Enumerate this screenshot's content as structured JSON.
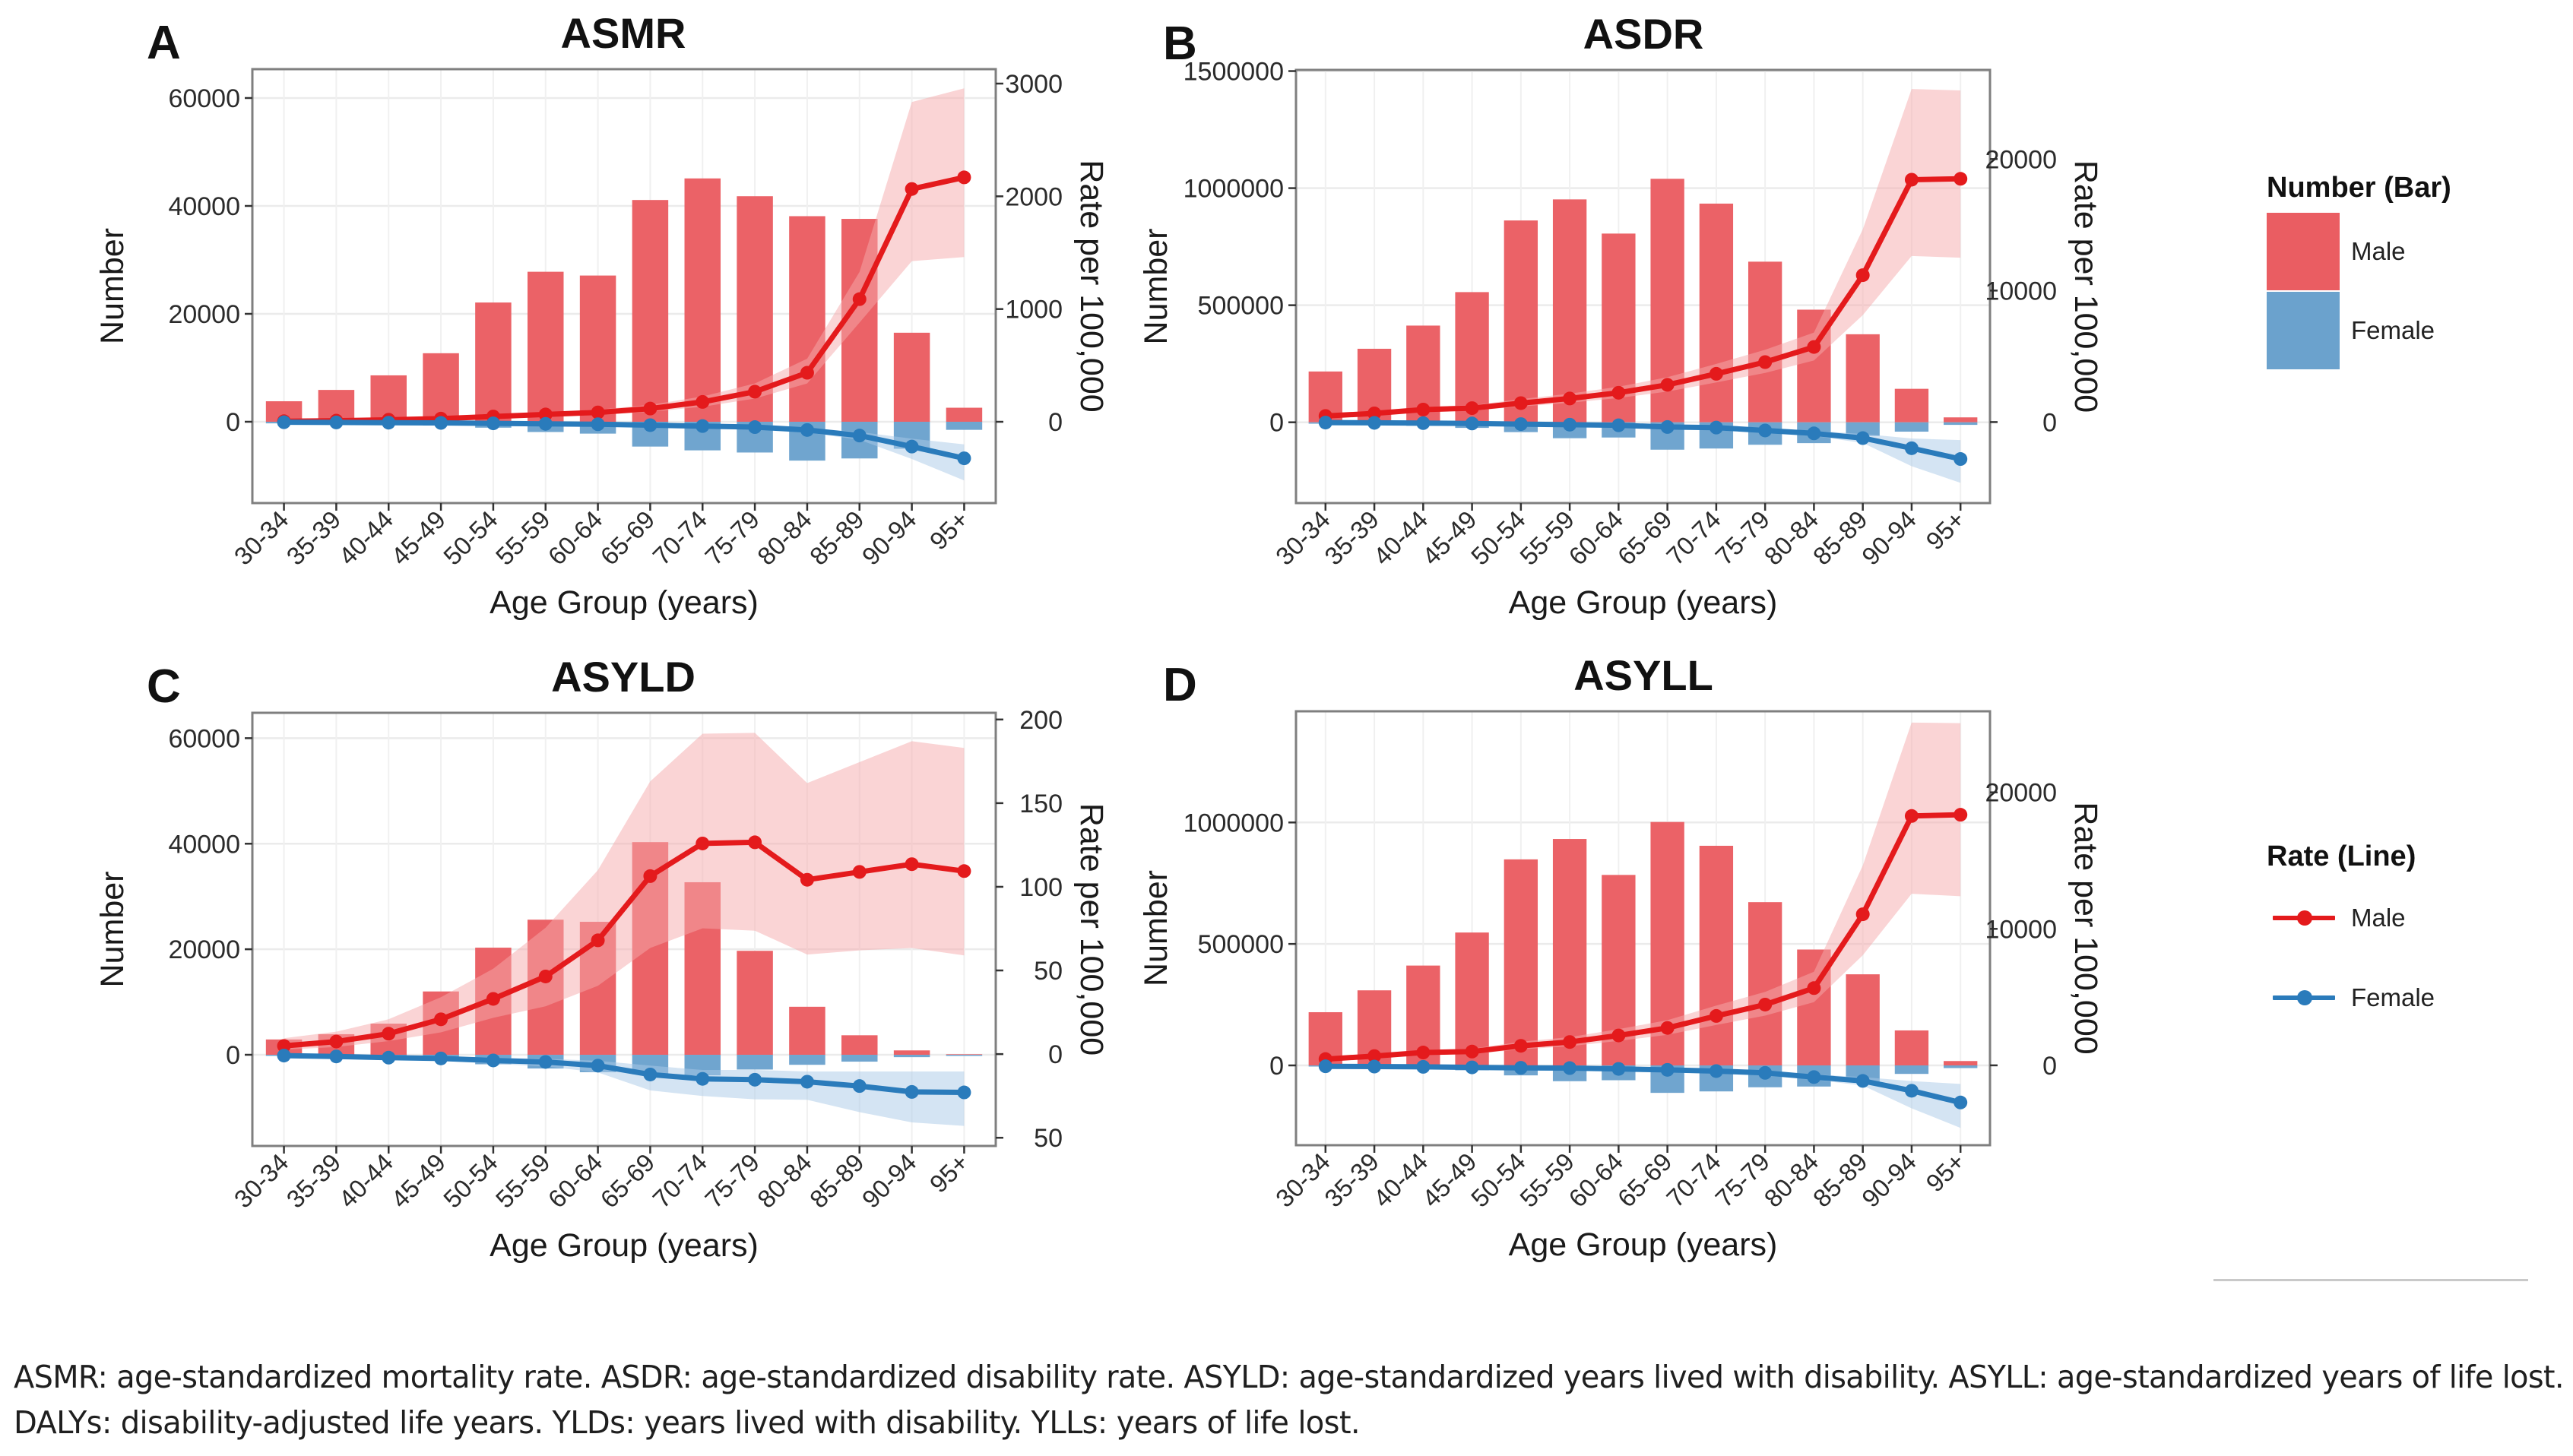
{
  "legend": {
    "bar_title": "Number (Bar)",
    "line_title": "Rate (Line)",
    "male_label": "Male",
    "female_label": "Female"
  },
  "colors": {
    "male_bar": "#EA5D62",
    "female_bar": "#6BA2CD",
    "male_line": "#E41A1C",
    "female_line": "#2A7BBB",
    "male_band": "#F5A9AC",
    "female_band": "#A9C9E8",
    "grid": "#EBEBEB",
    "frame": "#7F7F7F"
  },
  "caption": {
    "line1": "ASMR: age-standardized mortality rate. ASDR: age-standardized disability rate. ASYLD: age-standardized years lived with disability. ASYLL: age-standardized years of life lost.",
    "line2": "DALYs: disability-adjusted life years. YLDs: years lived with disability. YLLs: years of life lost."
  },
  "chart_data": [
    {
      "panel": "A",
      "title": "ASMR",
      "type": "bar+line",
      "xlabel": "Age Group (years)",
      "ylabel": "Number",
      "y2label": "Rate per 100,000",
      "categories": [
        "30-34",
        "35-39",
        "40-44",
        "45-49",
        "50-54",
        "55-59",
        "60-64",
        "65-69",
        "70-74",
        "75-79",
        "80-84",
        "85-89",
        "90-94",
        "95+"
      ],
      "ylim": [
        -15070,
        65350
      ],
      "yticks": [
        0,
        20000,
        40000,
        60000
      ],
      "y2lim": [
        -721,
        3128
      ],
      "y2ticks": [
        0,
        1000,
        2000,
        3000
      ],
      "grid": true,
      "bars": {
        "male": [
          3800,
          5900,
          8600,
          12700,
          22100,
          27800,
          27100,
          41100,
          45100,
          41800,
          38100,
          37600,
          16500,
          2600
        ],
        "female": [
          -300,
          -400,
          -500,
          -700,
          -1100,
          -1900,
          -2200,
          -4600,
          -5300,
          -5700,
          -7200,
          -6800,
          -5000,
          -1500
        ]
      },
      "lines": {
        "male": [
          5,
          10,
          18,
          28,
          47,
          65,
          83,
          117,
          176,
          267,
          435,
          1088,
          2065,
          2168
        ],
        "male_lower": [
          3,
          7,
          13,
          20,
          34,
          48,
          61,
          88,
          134,
          206,
          340,
          880,
          1425,
          1461
        ],
        "male_upper": [
          8,
          14,
          24,
          37,
          60,
          84,
          108,
          150,
          225,
          340,
          560,
          1330,
          2837,
          2958
        ],
        "female": [
          -4,
          -6,
          -8,
          -10,
          -14,
          -18,
          -22,
          -30,
          -38,
          -47,
          -73,
          -122,
          -220,
          -324
        ],
        "female_lower": [
          -6,
          -8,
          -11,
          -14,
          -19,
          -24,
          -29,
          -40,
          -50,
          -62,
          -95,
          -160,
          -330,
          -520
        ],
        "female_upper": [
          -2,
          -4,
          -5,
          -7,
          -10,
          -13,
          -16,
          -22,
          -28,
          -35,
          -55,
          -90,
          -150,
          -200
        ]
      }
    },
    {
      "panel": "B",
      "title": "ASDR",
      "type": "bar+line",
      "xlabel": "Age Group (years)",
      "ylabel": "Number",
      "y2label": "Rate per 100,000",
      "categories": [
        "30-34",
        "35-39",
        "40-44",
        "45-49",
        "50-54",
        "55-59",
        "60-64",
        "65-69",
        "70-74",
        "75-79",
        "80-84",
        "85-89",
        "90-94",
        "95+"
      ],
      "ylim": [
        -345000,
        1505000
      ],
      "yticks": [
        0,
        500000,
        1000000,
        1500000
      ],
      "y2lim": [
        -6160,
        26780
      ],
      "y2ticks": [
        0,
        10000,
        20000
      ],
      "grid": true,
      "bars": {
        "male": [
          217000,
          314000,
          413000,
          556000,
          862000,
          952000,
          806000,
          1040000,
          934000,
          686000,
          481000,
          376000,
          143000,
          21000
        ],
        "female": [
          -6000,
          -9000,
          -15000,
          -24000,
          -42000,
          -68000,
          -65000,
          -117000,
          -112000,
          -96000,
          -89000,
          -58000,
          -40000,
          -11000
        ]
      },
      "lines": {
        "male": [
          465,
          660,
          950,
          1060,
          1440,
          1790,
          2230,
          2830,
          3670,
          4560,
          5710,
          11170,
          18430,
          18500
        ],
        "male_lower": [
          380,
          540,
          780,
          870,
          1180,
          1470,
          1830,
          2320,
          3010,
          3740,
          4680,
          8140,
          12630,
          12500
        ],
        "male_upper": [
          560,
          800,
          1150,
          1280,
          1740,
          2160,
          2690,
          3410,
          4420,
          5500,
          6810,
          14670,
          25330,
          25220
        ],
        "female": [
          -40,
          -60,
          -80,
          -110,
          -155,
          -200,
          -245,
          -375,
          -420,
          -640,
          -860,
          -1220,
          -1990,
          -2810
        ],
        "female_lower": [
          -50,
          -75,
          -100,
          -135,
          -190,
          -245,
          -300,
          -460,
          -520,
          -790,
          -1060,
          -1590,
          -3360,
          -4620
        ],
        "female_upper": [
          -30,
          -45,
          -60,
          -85,
          -120,
          -155,
          -190,
          -290,
          -325,
          -495,
          -665,
          -900,
          -1250,
          -1370
        ]
      }
    },
    {
      "panel": "C",
      "title": "ASYLD",
      "type": "bar+line",
      "xlabel": "Age Group (years)",
      "ylabel": "Number",
      "y2label": "Rate per 100,000",
      "categories": [
        "30-34",
        "35-39",
        "40-44",
        "45-49",
        "50-54",
        "55-59",
        "60-64",
        "65-69",
        "70-74",
        "75-79",
        "80-84",
        "85-89",
        "90-94",
        "95+"
      ],
      "ylim": [
        -17280,
        64810
      ],
      "yticks": [
        0,
        20000,
        40000,
        60000
      ],
      "y2lim": [
        -54.9,
        204
      ],
      "y2ticks": [
        -50,
        0,
        50,
        100,
        150,
        200
      ],
      "grid": true,
      "bars": {
        "male": [
          2900,
          3900,
          5900,
          12000,
          20300,
          25600,
          25200,
          40300,
          32700,
          19700,
          9100,
          3700,
          830,
          100
        ],
        "female": [
          -100,
          -150,
          -200,
          -550,
          -1800,
          -2600,
          -3300,
          -3700,
          -3900,
          -2800,
          -1900,
          -1300,
          -450,
          -100
        ]
      },
      "lines": {
        "male": [
          4.9,
          7.5,
          12.2,
          20.8,
          33.0,
          46.4,
          68.0,
          106.4,
          125.9,
          126.6,
          104.2,
          108.9,
          113.5,
          109.4
        ],
        "male_lower": [
          2.6,
          4.3,
          7.8,
          13.0,
          21.7,
          28.6,
          40.8,
          63.4,
          75.2,
          73.8,
          59.5,
          62.0,
          63.4,
          59.0
        ],
        "male_upper": [
          9.5,
          13.4,
          20.8,
          34.0,
          51.0,
          75.5,
          110.0,
          163.0,
          191.5,
          192.0,
          162.0,
          174.5,
          187.0,
          183.0
        ],
        "female": [
          -0.9,
          -1.4,
          -2.1,
          -2.6,
          -3.8,
          -4.7,
          -6.9,
          -12.2,
          -14.8,
          -15.3,
          -16.5,
          -19.1,
          -22.6,
          -22.9
        ],
        "female_lower": [
          -1.5,
          -2.2,
          -3.2,
          -4.0,
          -5.8,
          -7.3,
          -11.0,
          -21.7,
          -25.0,
          -27.0,
          -27.3,
          -34.7,
          -40.8,
          -42.9
        ],
        "female_upper": [
          -0.5,
          -0.8,
          -1.2,
          -1.5,
          -2.2,
          -2.8,
          -4.0,
          -6.9,
          -9.5,
          -9.5,
          -10.4,
          -10.4,
          -10.4,
          -10.4
        ]
      }
    },
    {
      "panel": "D",
      "title": "ASYLL",
      "type": "bar+line",
      "xlabel": "Age Group (years)",
      "ylabel": "Number",
      "y2label": "Rate per 100,000",
      "categories": [
        "30-34",
        "35-39",
        "40-44",
        "45-49",
        "50-54",
        "55-59",
        "60-64",
        "65-69",
        "70-74",
        "75-79",
        "80-84",
        "85-89",
        "90-94",
        "95+"
      ],
      "ylim": [
        -328400,
        1457600
      ],
      "yticks": [
        0,
        500000,
        1000000
      ],
      "y2lim": [
        -5850,
        25940
      ],
      "y2ticks": [
        0,
        10000,
        20000
      ],
      "grid": true,
      "bars": {
        "male": [
          219000,
          309000,
          411000,
          547000,
          848000,
          932000,
          784000,
          1002000,
          904000,
          672000,
          477000,
          375000,
          144000,
          18000
        ],
        "female": [
          -4000,
          -6000,
          -11000,
          -20000,
          -41000,
          -65000,
          -61000,
          -113000,
          -107000,
          -90000,
          -87000,
          -68000,
          -35000,
          -11000
        ]
      },
      "lines": {
        "male": [
          460,
          680,
          940,
          1010,
          1430,
          1710,
          2190,
          2740,
          3620,
          4450,
          5660,
          11070,
          18270,
          18360
        ],
        "male_lower": [
          375,
          555,
          770,
          830,
          1170,
          1400,
          1790,
          2240,
          2960,
          3640,
          4630,
          8070,
          12570,
          12390
        ],
        "male_upper": [
          555,
          820,
          1130,
          1220,
          1730,
          2070,
          2650,
          3310,
          4380,
          5380,
          6860,
          14650,
          25110,
          25070
        ],
        "female": [
          -70,
          -90,
          -110,
          -150,
          -180,
          -200,
          -260,
          -330,
          -420,
          -550,
          -860,
          -1140,
          -1860,
          -2720
        ],
        "female_lower": [
          -85,
          -110,
          -135,
          -185,
          -220,
          -245,
          -320,
          -405,
          -515,
          -675,
          -1055,
          -1480,
          -3150,
          -4580
        ],
        "female_upper": [
          -55,
          -70,
          -85,
          -115,
          -140,
          -155,
          -200,
          -255,
          -325,
          -425,
          -665,
          -860,
          -1150,
          -1360
        ]
      }
    }
  ]
}
